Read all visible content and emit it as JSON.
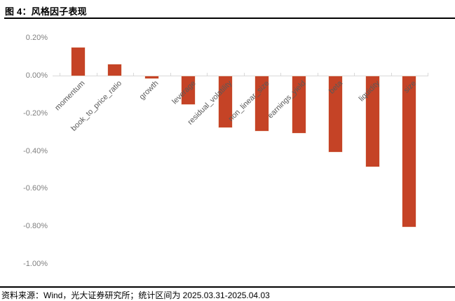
{
  "header": {
    "title": "图 4：风格因子表现"
  },
  "footer": {
    "source_note": "资料来源：Wind，光大证券研究所；统计区间为 2025.03.31-2025.04.03"
  },
  "colors": {
    "bar": "#c54326",
    "bar_edge": "#eeceb9",
    "axis_line": "#d9d9d9",
    "y_tick_label": "#7f7f7f",
    "category_label": "#595959",
    "rule": "#000000"
  },
  "chart_data": {
    "type": "bar",
    "title": "风格因子表现",
    "categories": [
      "momentum",
      "book_to_price_ratio",
      "growth",
      "leverage",
      "residual_volatility",
      "non_linear_size",
      "earnings_yield",
      "beta",
      "liquidity",
      "size"
    ],
    "values": [
      0.15,
      0.06,
      -0.01,
      -0.15,
      -0.27,
      -0.29,
      -0.3,
      -0.4,
      -0.48,
      -0.8
    ],
    "unit": "%",
    "xlabel": "",
    "ylabel": "",
    "y_ticks": [
      0.2,
      0.0,
      -0.2,
      -0.4,
      -0.6,
      -0.8,
      -1.0
    ],
    "y_tick_labels": [
      "0.20%",
      "0.00%",
      "-0.20%",
      "-0.40%",
      "-0.60%",
      "-0.80%",
      "-1.00%"
    ],
    "ylim": [
      -1.05,
      0.25
    ],
    "grid": false,
    "legend": null,
    "bar_color": "#c54326"
  }
}
